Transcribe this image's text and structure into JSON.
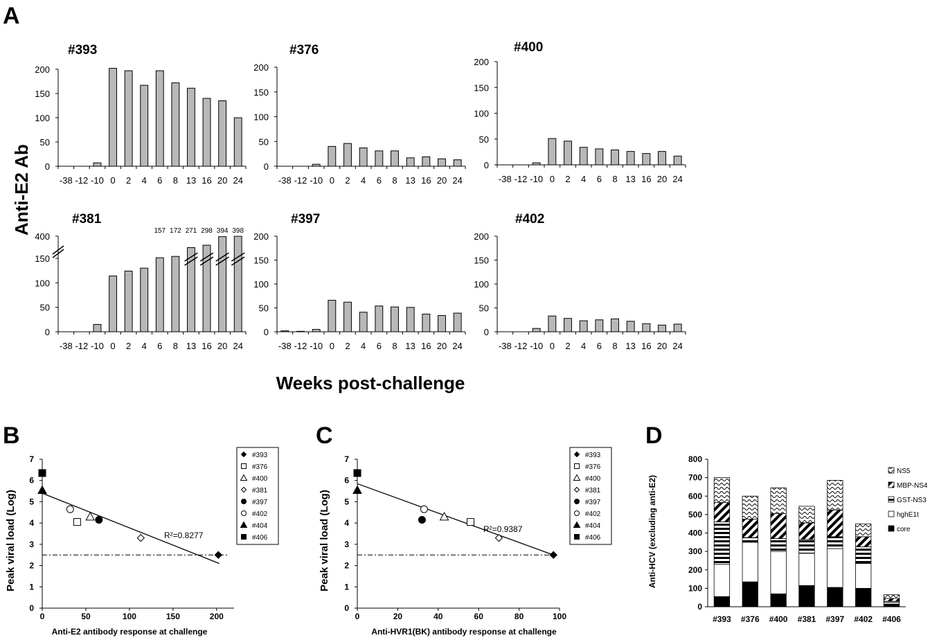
{
  "figure": {
    "panel_letters": [
      "A",
      "B",
      "C",
      "D"
    ],
    "y_title_A": "Anti-E2 Ab",
    "x_title_A": "Weeks post-challenge"
  },
  "colors": {
    "bar_fill": "#b8b8b8",
    "line": "#000000"
  },
  "chart_data": [
    {
      "type": "bar",
      "title": "#393",
      "categories": [
        "-38",
        "-12",
        "-10",
        "0",
        "2",
        "4",
        "6",
        "8",
        "13",
        "16",
        "20",
        "24"
      ],
      "values": [
        0,
        0,
        7,
        202,
        197,
        167,
        197,
        172,
        161,
        140,
        135,
        100
      ],
      "ylim": [
        0,
        200
      ],
      "yticks": [
        0,
        50,
        100,
        150,
        200
      ],
      "xlabel": "",
      "ylabel": ""
    },
    {
      "type": "bar",
      "title": "#376",
      "categories": [
        "-38",
        "-12",
        "-10",
        "0",
        "2",
        "4",
        "6",
        "8",
        "13",
        "16",
        "20",
        "24"
      ],
      "values": [
        0,
        0,
        4,
        40,
        46,
        37,
        31,
        31,
        17,
        19,
        15,
        13
      ],
      "ylim": [
        0,
        200
      ],
      "yticks": [
        0,
        50,
        100,
        150,
        200
      ],
      "xlabel": "",
      "ylabel": ""
    },
    {
      "type": "bar",
      "title": "#400",
      "categories": [
        "-38",
        "-12",
        "-10",
        "0",
        "2",
        "4",
        "6",
        "8",
        "13",
        "16",
        "20",
        "24"
      ],
      "values": [
        0,
        0,
        4,
        51,
        46,
        34,
        31,
        29,
        26,
        22,
        26,
        17
      ],
      "ylim": [
        0,
        200
      ],
      "yticks": [
        0,
        50,
        100,
        150,
        200
      ],
      "xlabel": "",
      "ylabel": ""
    },
    {
      "type": "bar",
      "title": "#381",
      "categories": [
        "-38",
        "-12",
        "-10",
        "0",
        "2",
        "4",
        "6",
        "8",
        "13",
        "16",
        "20",
        "24"
      ],
      "values": [
        0,
        0,
        15,
        114,
        124,
        130,
        157,
        172,
        271,
        298,
        394,
        398
      ],
      "value_labels": [
        "",
        "",
        "",
        "",
        "",
        "",
        "157",
        "172",
        "271",
        "298",
        "394",
        "398"
      ],
      "broken_axis": true,
      "yticks_labels": [
        "0",
        "50",
        "100",
        "150",
        "400"
      ],
      "ylim": [
        0,
        400
      ],
      "xlabel": "",
      "ylabel": ""
    },
    {
      "type": "bar",
      "title": "#397",
      "categories": [
        "-38",
        "-12",
        "-10",
        "0",
        "2",
        "4",
        "6",
        "8",
        "13",
        "16",
        "20",
        "24"
      ],
      "values": [
        2,
        1,
        5,
        66,
        62,
        41,
        54,
        52,
        51,
        37,
        34,
        39
      ],
      "ylim": [
        0,
        200
      ],
      "yticks": [
        0,
        50,
        100,
        150,
        200
      ],
      "xlabel": "",
      "ylabel": ""
    },
    {
      "type": "bar",
      "title": "#402",
      "categories": [
        "-38",
        "-12",
        "-10",
        "0",
        "2",
        "4",
        "6",
        "8",
        "13",
        "16",
        "20",
        "24"
      ],
      "values": [
        0,
        0,
        7,
        33,
        28,
        23,
        25,
        27,
        22,
        17,
        14,
        16
      ],
      "ylim": [
        0,
        200
      ],
      "yticks": [
        0,
        50,
        100,
        150,
        200
      ],
      "xlabel": "",
      "ylabel": ""
    },
    {
      "type": "scatter",
      "title": "",
      "xlabel": "Anti-E2 antibody response at challenge",
      "ylabel": "Peak viral load (Log)",
      "xlim": [
        0,
        220
      ],
      "ylim": [
        0,
        7
      ],
      "xticks": [
        0,
        50,
        100,
        150,
        200
      ],
      "yticks": [
        0,
        1,
        2,
        3,
        4,
        5,
        6,
        7
      ],
      "annotation": "R²=0.8277",
      "threshold": 2.5,
      "fit": [
        [
          0,
          5.4
        ],
        [
          203,
          2.1
        ]
      ],
      "points": [
        {
          "name": "#393",
          "x": 202,
          "y": 2.5
        },
        {
          "name": "#376",
          "x": 40,
          "y": 4.05
        },
        {
          "name": "#400",
          "x": 55,
          "y": 4.3
        },
        {
          "name": "#381",
          "x": 113,
          "y": 3.3
        },
        {
          "name": "#397",
          "x": 65,
          "y": 4.15
        },
        {
          "name": "#402",
          "x": 32,
          "y": 4.65
        },
        {
          "name": "#404",
          "x": 0,
          "y": 5.55
        },
        {
          "name": "#406",
          "x": 0,
          "y": 6.35
        }
      ],
      "legend": [
        "#393",
        "#376",
        "#400",
        "#381",
        "#397",
        "#402",
        "#404",
        "#406"
      ]
    },
    {
      "type": "scatter",
      "title": "",
      "xlabel": "Anti-HVR1(BK) antibody response at challenge",
      "ylabel": "Peak viral load (Log)",
      "xlim": [
        0,
        100
      ],
      "ylim": [
        0,
        7
      ],
      "xticks": [
        0,
        20,
        40,
        60,
        80,
        100
      ],
      "yticks": [
        0,
        1,
        2,
        3,
        4,
        5,
        6,
        7
      ],
      "annotation": "R²=0.9387",
      "threshold": 2.5,
      "fit": [
        [
          0,
          5.85
        ],
        [
          97,
          2.5
        ]
      ],
      "points": [
        {
          "name": "#393",
          "x": 97,
          "y": 2.5
        },
        {
          "name": "#376",
          "x": 56,
          "y": 4.05
        },
        {
          "name": "#400",
          "x": 43,
          "y": 4.3
        },
        {
          "name": "#381",
          "x": 70,
          "y": 3.3
        },
        {
          "name": "#397",
          "x": 32,
          "y": 4.15
        },
        {
          "name": "#402",
          "x": 33,
          "y": 4.65
        },
        {
          "name": "#404",
          "x": 0,
          "y": 5.55
        },
        {
          "name": "#406",
          "x": 0,
          "y": 6.35
        }
      ],
      "legend": [
        "#393",
        "#376",
        "#400",
        "#381",
        "#397",
        "#402",
        "#404",
        "#406"
      ]
    },
    {
      "type": "bar",
      "stacked": true,
      "title": "",
      "xlabel": "",
      "ylabel": "Anti-HCV (excluding anti-E2)",
      "categories": [
        "#393",
        "#376",
        "#400",
        "#381",
        "#397",
        "#402",
        "#406"
      ],
      "ylim": [
        0,
        800
      ],
      "yticks": [
        0,
        100,
        200,
        300,
        400,
        500,
        600,
        700,
        800
      ],
      "series": [
        {
          "name": "core",
          "values": [
            55,
            135,
            70,
            115,
            105,
            100,
            15
          ]
        },
        {
          "name": "hghE1t",
          "values": [
            175,
            215,
            230,
            175,
            210,
            135,
            10
          ]
        },
        {
          "name": "GST-NS3",
          "values": [
            230,
            25,
            70,
            75,
            65,
            90,
            5
          ]
        },
        {
          "name": "MBP-NS4",
          "values": [
            105,
            100,
            135,
            90,
            145,
            55,
            15
          ]
        },
        {
          "name": "NS5",
          "values": [
            135,
            125,
            140,
            90,
            160,
            70,
            20
          ]
        }
      ],
      "legend_order": [
        "NS5",
        "MBP-NS4",
        "GST-NS3",
        "hghE1t",
        "core"
      ]
    }
  ]
}
